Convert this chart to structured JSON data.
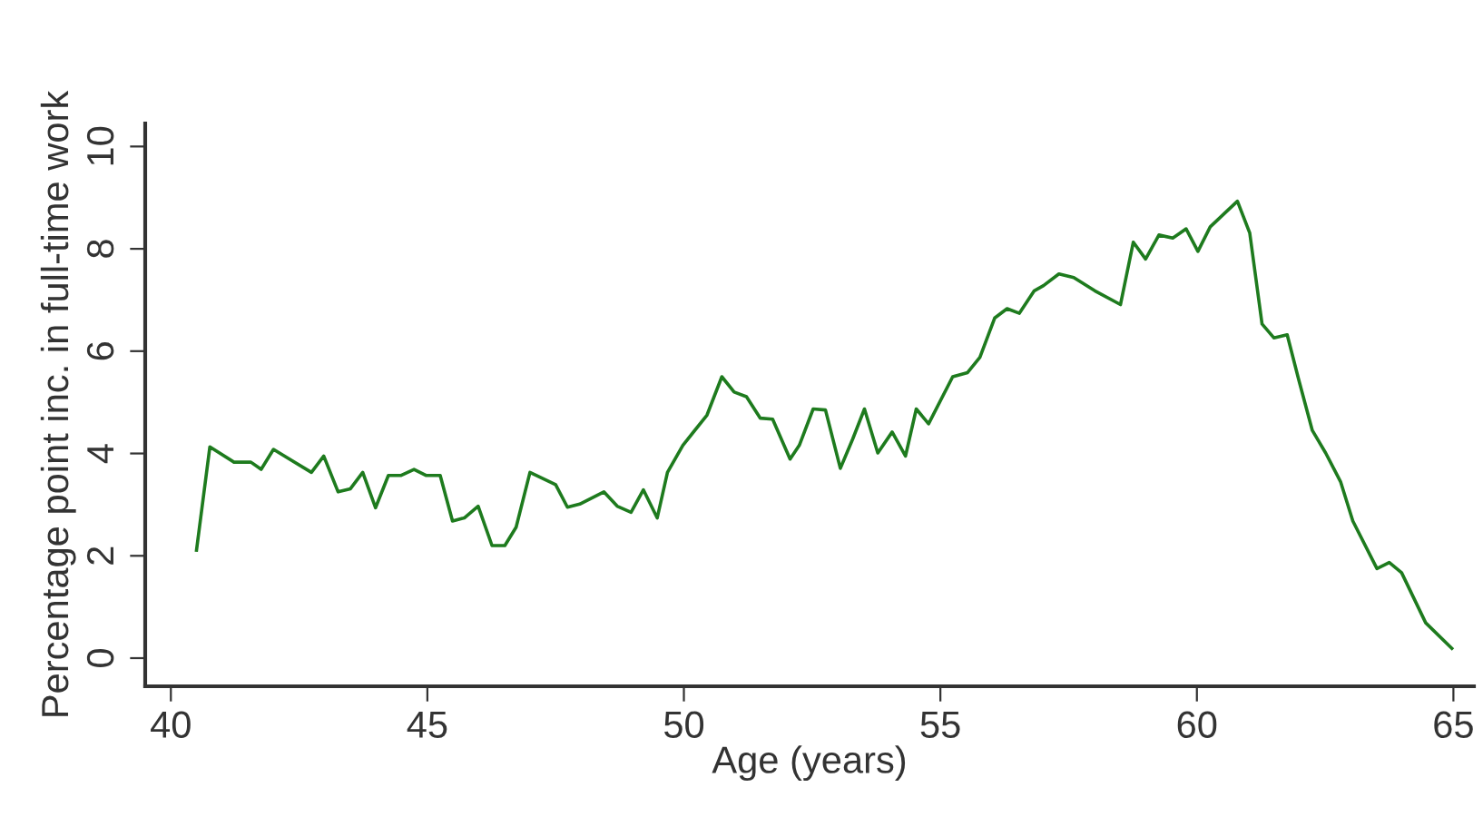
{
  "chart_data": {
    "type": "line",
    "xlabel": "Age (years)",
    "ylabel": "Percentage point inc. in full-time work",
    "xlim": [
      39.5,
      65.4
    ],
    "ylim": [
      -0.55,
      10.45
    ],
    "xticks": [
      40,
      45,
      50,
      55,
      60,
      65
    ],
    "yticks": [
      0,
      2,
      4,
      6,
      8,
      10
    ],
    "grid": false,
    "legend": false,
    "series": [
      {
        "color": "#1e7b1e",
        "x": [
          40.5,
          40.76,
          41.23,
          41.56,
          41.76,
          42.0,
          42.74,
          42.98,
          43.26,
          43.5,
          43.74,
          43.99,
          44.24,
          44.48,
          44.74,
          44.98,
          45.25,
          45.49,
          45.72,
          45.99,
          46.26,
          46.51,
          46.73,
          47.0,
          47.5,
          47.73,
          47.97,
          48.44,
          48.7,
          48.97,
          49.21,
          49.48,
          49.68,
          49.98,
          50.45,
          50.74,
          50.98,
          51.22,
          51.49,
          51.73,
          52.07,
          52.25,
          52.52,
          52.76,
          53.05,
          53.29,
          53.52,
          53.78,
          54.06,
          54.32,
          54.53,
          54.77,
          55.24,
          55.53,
          55.77,
          56.06,
          56.3,
          56.54,
          56.83,
          57.01,
          57.31,
          57.6,
          58.01,
          58.51,
          58.76,
          59.0,
          59.26,
          59.53,
          59.79,
          60.02,
          60.26,
          60.79,
          61.03,
          61.27,
          61.5,
          61.76,
          61.98,
          62.25,
          62.51,
          62.8,
          63.04,
          63.51,
          63.75,
          63.99,
          64.46,
          64.97
        ],
        "values": [
          2.11,
          4.13,
          3.83,
          3.83,
          3.69,
          4.08,
          3.63,
          3.95,
          3.25,
          3.31,
          3.63,
          2.94,
          3.57,
          3.57,
          3.69,
          3.57,
          3.57,
          2.68,
          2.74,
          2.97,
          2.2,
          2.2,
          2.56,
          3.63,
          3.39,
          2.95,
          3.01,
          3.25,
          2.97,
          2.85,
          3.29,
          2.74,
          3.63,
          4.16,
          4.75,
          5.5,
          5.2,
          5.11,
          4.69,
          4.67,
          3.89,
          4.16,
          4.87,
          4.85,
          3.71,
          4.28,
          4.87,
          4.01,
          4.42,
          3.95,
          4.87,
          4.58,
          5.5,
          5.58,
          5.88,
          6.65,
          6.83,
          6.74,
          7.18,
          7.28,
          7.51,
          7.44,
          7.18,
          6.91,
          8.13,
          7.8,
          8.27,
          8.21,
          8.39,
          7.95,
          8.43,
          8.93,
          8.31,
          6.53,
          6.26,
          6.32,
          5.46,
          4.45,
          4.01,
          3.45,
          2.68,
          1.75,
          1.87,
          1.67,
          0.69,
          0.19
        ]
      }
    ]
  }
}
